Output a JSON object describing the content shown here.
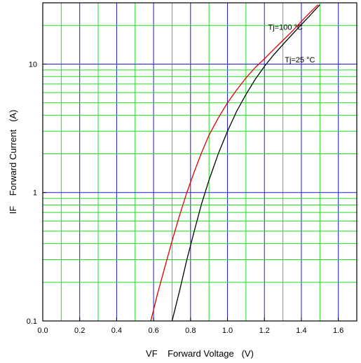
{
  "chart_data": {
    "type": "line",
    "xlabel": "VF    Forward Voltage   (V)",
    "ylabel": "IF    Forward Current   (A)",
    "xlim": [
      0.0,
      1.7
    ],
    "ylim": [
      0.1,
      30
    ],
    "y_scale": "log",
    "grid": true,
    "x_ticks": [
      "0.0",
      "0.2",
      "0.4",
      "0.6",
      "0.8",
      "1.0",
      "1.2",
      "1.4",
      "1.6"
    ],
    "y_ticks": [
      "0.1",
      "1",
      "10"
    ],
    "series": [
      {
        "name": "Tj=100 °C",
        "color": "#e00000",
        "x": [
          0.585,
          0.62,
          0.66,
          0.7,
          0.74,
          0.78,
          0.82,
          0.86,
          0.9,
          0.95,
          1.0,
          1.05,
          1.1,
          1.15,
          1.2,
          1.25,
          1.3,
          1.35,
          1.4,
          1.45,
          1.49
        ],
        "y": [
          0.1,
          0.16,
          0.26,
          0.42,
          0.66,
          1.0,
          1.45,
          2.05,
          2.8,
          3.8,
          5.0,
          6.3,
          7.8,
          9.4,
          11.0,
          13.0,
          15.3,
          18.0,
          21.5,
          25.5,
          29.0
        ]
      },
      {
        "name": "Tj=25 °C",
        "color": "#000000",
        "x": [
          0.7,
          0.74,
          0.78,
          0.82,
          0.86,
          0.9,
          0.95,
          1.0,
          1.05,
          1.1,
          1.15,
          1.2,
          1.25,
          1.3,
          1.35,
          1.4,
          1.45,
          1.5
        ],
        "y": [
          0.1,
          0.17,
          0.3,
          0.5,
          0.82,
          1.25,
          2.0,
          3.0,
          4.3,
          5.8,
          7.6,
          9.6,
          11.8,
          14.2,
          17.0,
          20.3,
          24.2,
          29.0
        ]
      }
    ],
    "annotations": [
      {
        "text": "Tj=100 °C",
        "x": 1.22,
        "y": 18.5
      },
      {
        "text": "Tj=25 °C",
        "x": 1.31,
        "y": 10.3
      }
    ]
  }
}
